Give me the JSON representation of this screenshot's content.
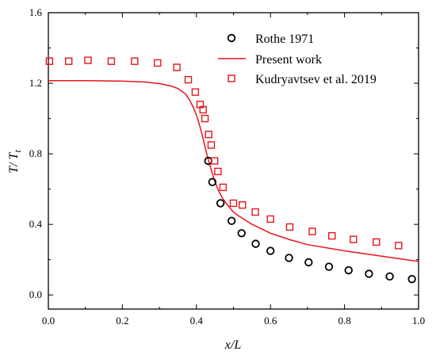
{
  "chart_data": {
    "type": "scatter",
    "xlabel": "x/L",
    "ylabel_main": "T/ T",
    "ylabel_sub": "t",
    "xlim": [
      0,
      1
    ],
    "ylim": [
      -0.08,
      1.6
    ],
    "x_ticks": [
      0.0,
      0.2,
      0.4,
      0.6,
      0.8,
      1.0
    ],
    "x_tick_labels": [
      "0.0",
      "0.2",
      "0.4",
      "0.6",
      "0.8",
      "1.0"
    ],
    "y_ticks": [
      0.0,
      0.4,
      0.8,
      1.2,
      1.6
    ],
    "y_tick_labels": [
      "0.0",
      "0.4",
      "0.8",
      "1.2",
      "1.6"
    ],
    "grid": false,
    "legend_position": "top-right",
    "series": [
      {
        "name": "Rothe 1971",
        "kind": "scatter",
        "marker": "circle",
        "color": "#000000",
        "x": [
          0.432,
          0.443,
          0.465,
          0.495,
          0.522,
          0.56,
          0.6,
          0.65,
          0.703,
          0.758,
          0.811,
          0.866,
          0.922,
          0.982
        ],
        "y": [
          0.76,
          0.64,
          0.52,
          0.42,
          0.35,
          0.29,
          0.25,
          0.21,
          0.185,
          0.16,
          0.14,
          0.12,
          0.105,
          0.09
        ]
      },
      {
        "name": "Present work",
        "kind": "line",
        "color": "#e8141c",
        "x": [
          0.0,
          0.1,
          0.2,
          0.26,
          0.3,
          0.33,
          0.35,
          0.37,
          0.38,
          0.39,
          0.4,
          0.41,
          0.42,
          0.43,
          0.44,
          0.45,
          0.46,
          0.47,
          0.48,
          0.5,
          0.52,
          0.55,
          0.6,
          0.65,
          0.7,
          0.8,
          0.9,
          1.0
        ],
        "y": [
          1.215,
          1.215,
          1.212,
          1.207,
          1.198,
          1.185,
          1.17,
          1.14,
          1.11,
          1.07,
          1.02,
          0.95,
          0.87,
          0.78,
          0.71,
          0.64,
          0.59,
          0.55,
          0.52,
          0.47,
          0.44,
          0.4,
          0.35,
          0.315,
          0.285,
          0.25,
          0.22,
          0.19
        ]
      },
      {
        "name": "Kudryavtsev et al. 2019",
        "kind": "scatter",
        "marker": "square",
        "color": "#e8141c",
        "x": [
          0.003,
          0.055,
          0.107,
          0.17,
          0.233,
          0.295,
          0.347,
          0.378,
          0.397,
          0.41,
          0.418,
          0.423,
          0.433,
          0.44,
          0.449,
          0.458,
          0.472,
          0.5,
          0.524,
          0.559,
          0.6,
          0.652,
          0.713,
          0.766,
          0.824,
          0.886,
          0.946
        ],
        "y": [
          1.325,
          1.325,
          1.33,
          1.325,
          1.325,
          1.315,
          1.29,
          1.22,
          1.15,
          1.08,
          1.05,
          1.0,
          0.91,
          0.85,
          0.76,
          0.7,
          0.61,
          0.52,
          0.51,
          0.47,
          0.43,
          0.385,
          0.36,
          0.335,
          0.315,
          0.3,
          0.28
        ]
      }
    ]
  }
}
